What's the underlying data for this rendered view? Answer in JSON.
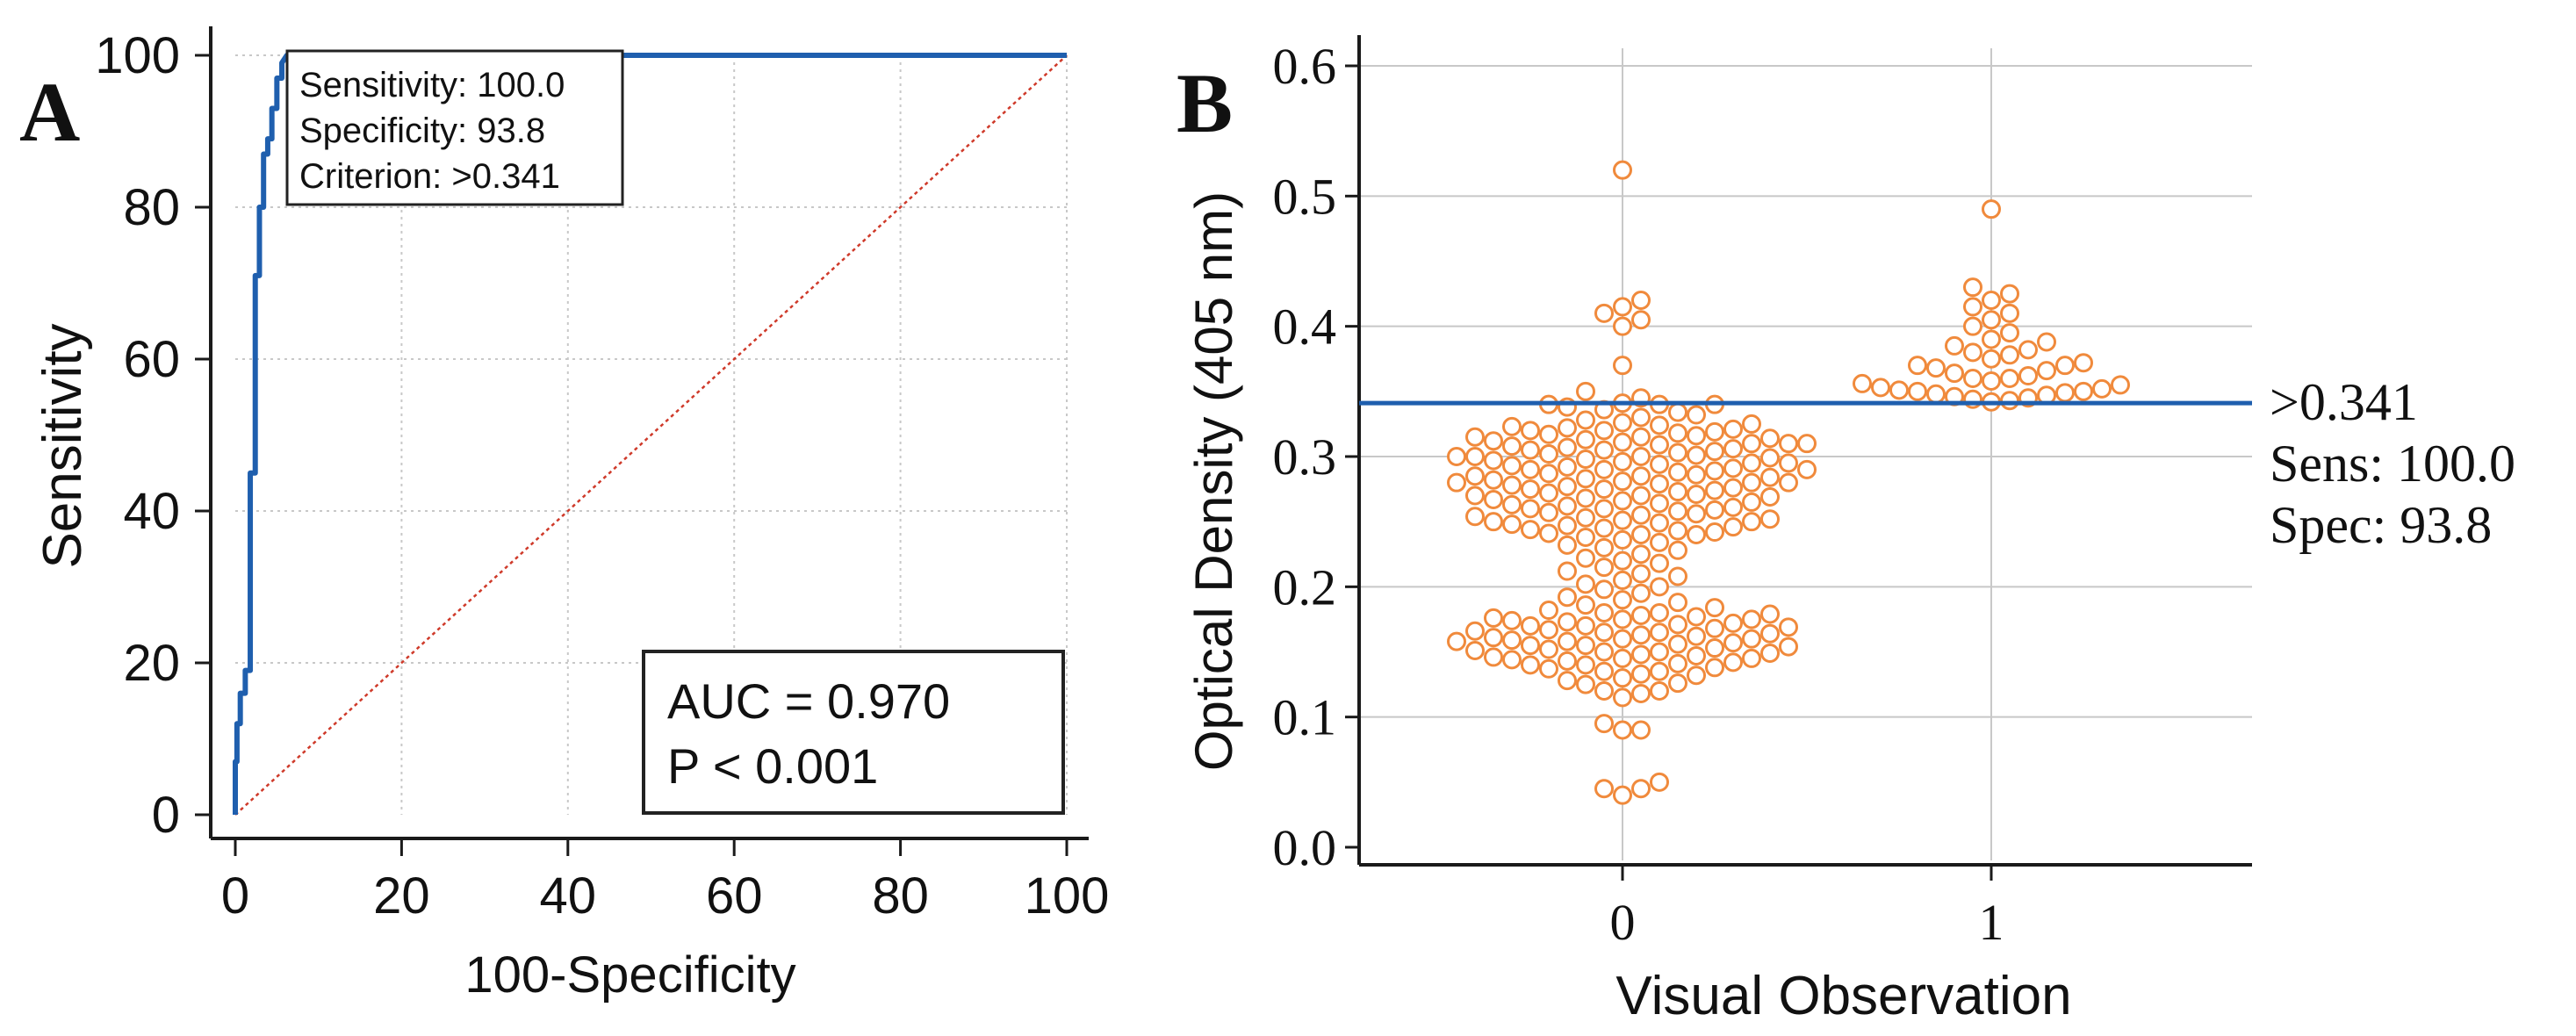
{
  "colors": {
    "roc_line": "#1f5fae",
    "diagonal": "#cf3a2a",
    "points": "#f08a3c",
    "cutoff_line": "#1f5fae",
    "grid": "#c8c8c8",
    "axis": "#1a1a1a"
  },
  "chart_data": [
    {
      "type": "line",
      "panel_label": "A",
      "xlabel": "100-Specificity",
      "ylabel": "Sensitivity",
      "xlim": [
        0,
        100
      ],
      "ylim": [
        0,
        100
      ],
      "xticks": [
        0,
        20,
        40,
        60,
        80,
        100
      ],
      "yticks": [
        0,
        20,
        40,
        60,
        80,
        100
      ],
      "grid": true,
      "series": [
        {
          "role": "roc-curve",
          "x": [
            0,
            0,
            0.2,
            0.2,
            0.6,
            0.6,
            1.2,
            1.2,
            1.8,
            1.8,
            2.4,
            2.4,
            2.9,
            2.9,
            3.4,
            3.4,
            3.9,
            3.9,
            4.4,
            4.4,
            5.0,
            5.0,
            5.6,
            5.6,
            6.2,
            100
          ],
          "y": [
            0,
            7,
            7,
            12,
            12,
            16,
            16,
            19,
            19,
            45,
            45,
            71,
            71,
            80,
            80,
            87,
            87,
            89,
            89,
            93,
            93,
            97,
            97,
            99,
            100,
            100
          ]
        },
        {
          "role": "reference-diagonal",
          "x": [
            0,
            100
          ],
          "y": [
            0,
            100
          ]
        }
      ],
      "annotation": {
        "lines": [
          "Sensitivity: 100.0",
          "Specificity: 93.8",
          "Criterion: >0.341"
        ]
      },
      "stats_box": {
        "lines": [
          "AUC = 0.970",
          "P < 0.001"
        ]
      }
    },
    {
      "type": "scatter",
      "panel_label": "B",
      "xlabel": "Visual Observation",
      "ylabel": "Optical Density (405 nm)",
      "categories": [
        "0",
        "1"
      ],
      "ylim": [
        0,
        0.6
      ],
      "yticks": [
        "0.0",
        "0.1",
        "0.2",
        "0.3",
        "0.4",
        "0.5",
        "0.6"
      ],
      "grid": true,
      "cutoff": {
        "value": 0.341,
        "labels": [
          ">0.341",
          "Sens: 100.0",
          "Spec: 93.8"
        ]
      },
      "groups": [
        {
          "category": "0",
          "values": [
            0.04,
            0.045,
            0.045,
            0.05,
            0.09,
            0.09,
            0.095,
            0.115,
            0.118,
            0.12,
            0.12,
            0.125,
            0.126,
            0.128,
            0.13,
            0.132,
            0.133,
            0.135,
            0.135,
            0.137,
            0.138,
            0.14,
            0.14,
            0.141,
            0.142,
            0.143,
            0.144,
            0.145,
            0.145,
            0.146,
            0.147,
            0.148,
            0.149,
            0.15,
            0.15,
            0.151,
            0.152,
            0.153,
            0.154,
            0.155,
            0.155,
            0.156,
            0.157,
            0.158,
            0.158,
            0.159,
            0.16,
            0.16,
            0.161,
            0.162,
            0.163,
            0.164,
            0.165,
            0.165,
            0.166,
            0.167,
            0.168,
            0.169,
            0.17,
            0.17,
            0.171,
            0.172,
            0.173,
            0.174,
            0.175,
            0.175,
            0.176,
            0.177,
            0.178,
            0.179,
            0.18,
            0.18,
            0.182,
            0.184,
            0.186,
            0.188,
            0.19,
            0.192,
            0.195,
            0.198,
            0.2,
            0.202,
            0.205,
            0.208,
            0.21,
            0.212,
            0.215,
            0.218,
            0.22,
            0.222,
            0.225,
            0.228,
            0.23,
            0.232,
            0.234,
            0.236,
            0.238,
            0.24,
            0.24,
            0.241,
            0.242,
            0.243,
            0.244,
            0.245,
            0.246,
            0.247,
            0.248,
            0.249,
            0.25,
            0.25,
            0.251,
            0.252,
            0.253,
            0.254,
            0.255,
            0.256,
            0.257,
            0.258,
            0.259,
            0.26,
            0.26,
            0.261,
            0.262,
            0.263,
            0.264,
            0.265,
            0.266,
            0.267,
            0.268,
            0.269,
            0.27,
            0.27,
            0.271,
            0.272,
            0.273,
            0.274,
            0.275,
            0.275,
            0.276,
            0.277,
            0.278,
            0.279,
            0.28,
            0.28,
            0.28,
            0.281,
            0.282,
            0.283,
            0.284,
            0.285,
            0.285,
            0.286,
            0.287,
            0.288,
            0.289,
            0.29,
            0.29,
            0.29,
            0.291,
            0.292,
            0.293,
            0.294,
            0.295,
            0.295,
            0.296,
            0.297,
            0.298,
            0.299,
            0.3,
            0.3,
            0.3,
            0.301,
            0.302,
            0.303,
            0.304,
            0.305,
            0.305,
            0.306,
            0.307,
            0.308,
            0.309,
            0.31,
            0.31,
            0.31,
            0.311,
            0.312,
            0.313,
            0.314,
            0.315,
            0.315,
            0.316,
            0.317,
            0.318,
            0.319,
            0.32,
            0.32,
            0.321,
            0.322,
            0.323,
            0.324,
            0.325,
            0.326,
            0.328,
            0.33,
            0.332,
            0.334,
            0.336,
            0.338,
            0.34,
            0.34,
            0.34,
            0.341,
            0.345,
            0.35,
            0.37,
            0.4,
            0.405,
            0.41,
            0.415,
            0.42,
            0.52
          ]
        },
        {
          "category": "1",
          "values": [
            0.342,
            0.343,
            0.344,
            0.345,
            0.346,
            0.347,
            0.348,
            0.349,
            0.35,
            0.35,
            0.351,
            0.352,
            0.353,
            0.355,
            0.356,
            0.358,
            0.36,
            0.36,
            0.362,
            0.364,
            0.366,
            0.368,
            0.37,
            0.37,
            0.372,
            0.375,
            0.378,
            0.38,
            0.382,
            0.385,
            0.388,
            0.39,
            0.395,
            0.4,
            0.405,
            0.41,
            0.415,
            0.42,
            0.425,
            0.43,
            0.49
          ]
        }
      ]
    }
  ]
}
